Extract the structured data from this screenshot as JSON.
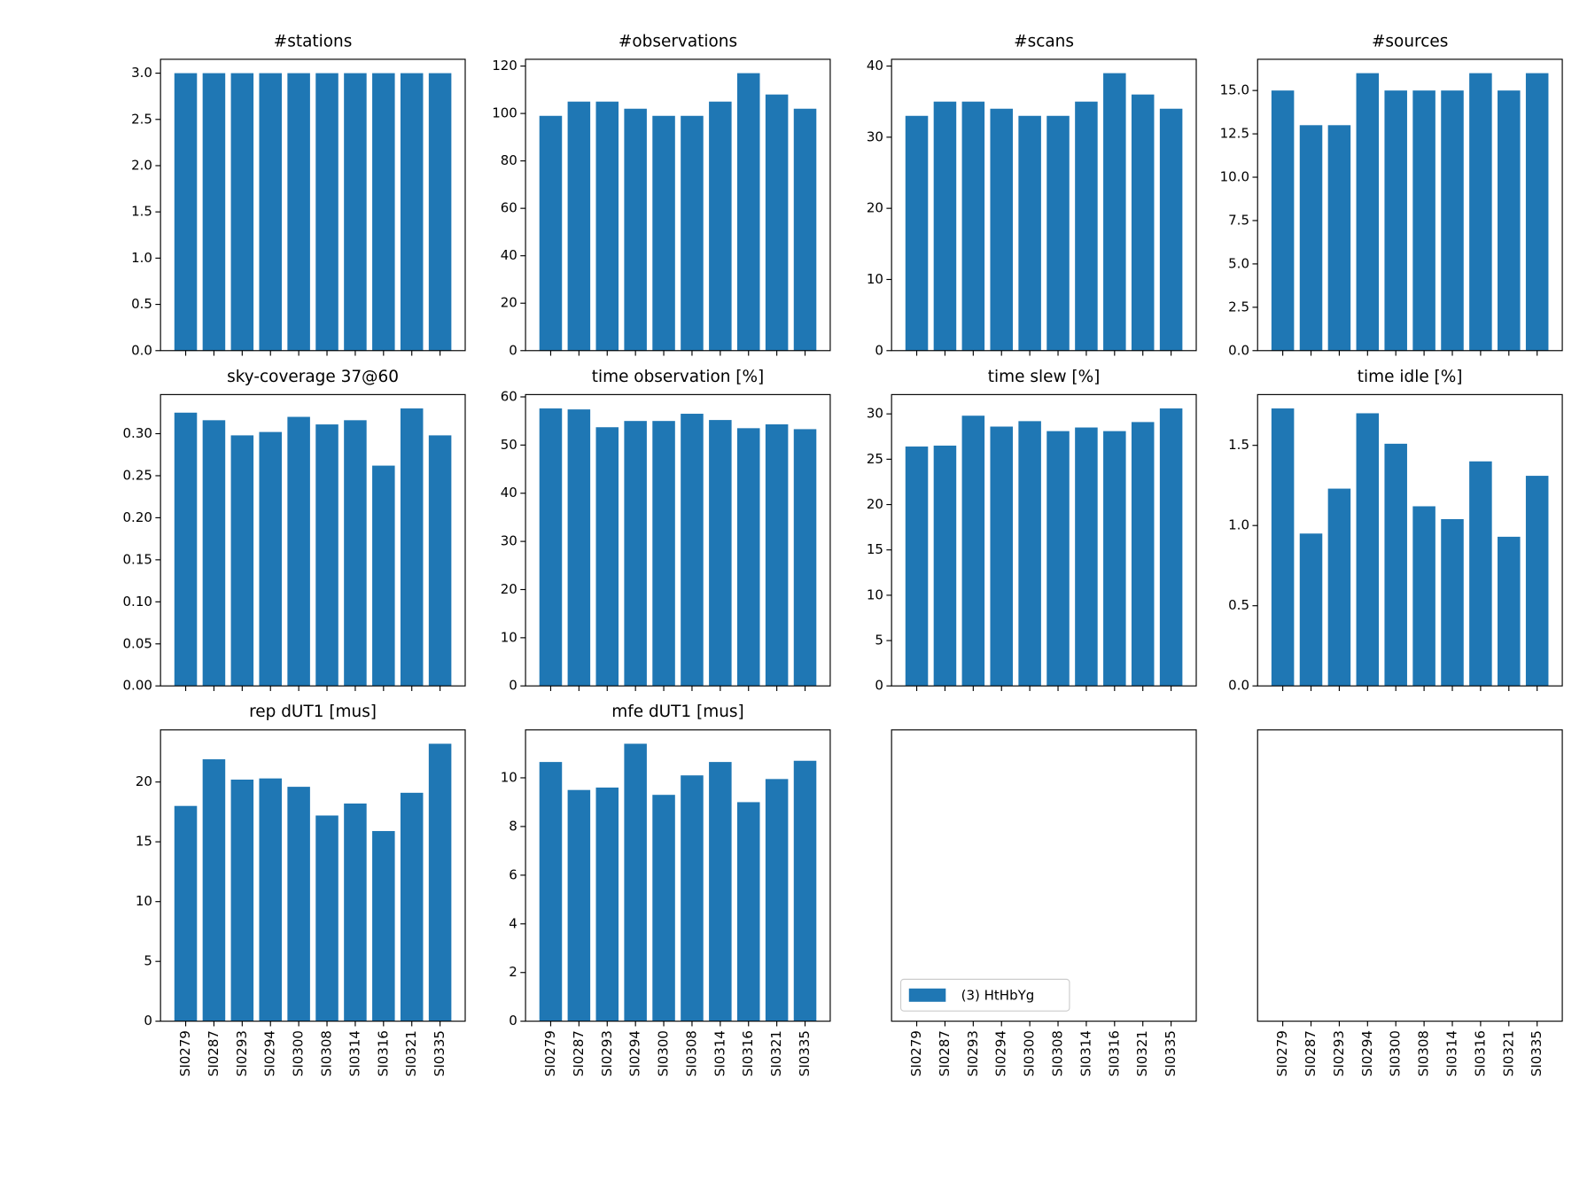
{
  "chart_data": [
    {
      "type": "bar",
      "title": "#stations",
      "values": [
        3,
        3,
        3,
        3,
        3,
        3,
        3,
        3,
        3,
        3
      ],
      "color": "#1f77b4",
      "ylim": [
        0,
        3.15
      ],
      "yticks": [
        {
          "value": 0,
          "label": "0.0"
        },
        0.5,
        {
          "value": 1,
          "label": "1.0"
        },
        1.5,
        {
          "value": 2,
          "label": "2.0"
        },
        2.5,
        {
          "value": 3,
          "label": "3.0"
        }
      ]
    },
    {
      "type": "bar",
      "title": "#observations",
      "values": [
        99,
        105,
        105,
        102,
        99,
        99,
        105,
        117,
        108,
        102
      ],
      "color": "#1f77b4",
      "ylim": [
        0,
        122.85
      ],
      "yticks": [
        0,
        20,
        40,
        60,
        80,
        100,
        120
      ]
    },
    {
      "type": "bar",
      "title": "#scans",
      "values": [
        33,
        35,
        35,
        34,
        33,
        33,
        35,
        39,
        36,
        34
      ],
      "color": "#1f77b4",
      "ylim": [
        0,
        40.95
      ],
      "yticks": [
        0,
        10,
        20,
        30,
        40
      ]
    },
    {
      "type": "bar",
      "title": "#sources",
      "values": [
        15,
        13,
        13,
        16,
        15,
        15,
        15,
        16,
        15,
        16
      ],
      "color": "#1f77b4",
      "ylim": [
        0,
        16.8
      ],
      "yticks": [
        {
          "value": 0,
          "label": "0.0"
        },
        2.5,
        {
          "value": 5,
          "label": "5.0"
        },
        7.5,
        {
          "value": 10,
          "label": "10.0"
        },
        12.5,
        {
          "value": 15,
          "label": "15.0"
        }
      ]
    },
    {
      "type": "bar",
      "title": "sky-coverage 37@60",
      "values": [
        0.325,
        0.316,
        0.298,
        0.302,
        0.32,
        0.311,
        0.316,
        0.262,
        0.33,
        0.298
      ],
      "color": "#1f77b4",
      "ylim": [
        0,
        0.3465
      ],
      "yticks": [
        {
          "value": 0,
          "label": "0.00"
        },
        0.05,
        {
          "value": 0.1,
          "label": "0.10"
        },
        0.15,
        {
          "value": 0.2,
          "label": "0.20"
        },
        0.25,
        {
          "value": 0.3,
          "label": "0.30"
        }
      ]
    },
    {
      "type": "bar",
      "title": "time observation [%]",
      "values": [
        57.6,
        57.4,
        53.7,
        55.0,
        55.0,
        56.5,
        55.2,
        53.5,
        54.3,
        53.3
      ],
      "color": "#1f77b4",
      "ylim": [
        0,
        60.48
      ],
      "yticks": [
        0,
        10,
        20,
        30,
        40,
        50,
        60
      ]
    },
    {
      "type": "bar",
      "title": "time slew [%]",
      "values": [
        26.4,
        26.5,
        29.8,
        28.6,
        29.2,
        28.1,
        28.5,
        28.1,
        29.1,
        30.6
      ],
      "color": "#1f77b4",
      "ylim": [
        0,
        32.13
      ],
      "yticks": [
        0,
        5,
        10,
        15,
        20,
        25,
        30
      ]
    },
    {
      "type": "bar",
      "title": "time idle [%]",
      "values": [
        1.73,
        0.95,
        1.23,
        1.7,
        1.51,
        1.12,
        1.04,
        1.4,
        0.93,
        1.31
      ],
      "color": "#1f77b4",
      "ylim": [
        0,
        1.8165
      ],
      "yticks": [
        {
          "value": 0,
          "label": "0.0"
        },
        0.5,
        {
          "value": 1,
          "label": "1.0"
        },
        1.5
      ]
    },
    {
      "type": "bar",
      "title": "rep dUT1 [mus]",
      "categories": [
        "SI0279",
        "SI0287",
        "SI0293",
        "SI0294",
        "SI0300",
        "SI0308",
        "SI0314",
        "SI0316",
        "SI0321",
        "SI0335"
      ],
      "values": [
        18.0,
        21.9,
        20.2,
        20.3,
        19.6,
        17.2,
        18.2,
        15.9,
        19.1,
        23.2
      ],
      "color": "#1f77b4",
      "ylim": [
        0,
        24.36
      ],
      "yticks": [
        0,
        5,
        10,
        15,
        20
      ]
    },
    {
      "type": "bar",
      "title": "mfe dUT1 [mus]",
      "categories": [
        "SI0279",
        "SI0287",
        "SI0293",
        "SI0294",
        "SI0300",
        "SI0308",
        "SI0314",
        "SI0316",
        "SI0321",
        "SI0335"
      ],
      "values": [
        10.65,
        9.5,
        9.6,
        11.4,
        9.3,
        10.1,
        10.65,
        9.0,
        9.95,
        10.7
      ],
      "color": "#1f77b4",
      "ylim": [
        0,
        11.97
      ],
      "yticks": [
        0,
        2,
        4,
        6,
        8,
        10
      ]
    },
    {
      "type": "empty",
      "categories": [
        "SI0279",
        "SI0287",
        "SI0293",
        "SI0294",
        "SI0300",
        "SI0308",
        "SI0314",
        "SI0316",
        "SI0321",
        "SI0335"
      ],
      "legend": {
        "label": "(3) HtHbYg",
        "color": "#1f77b4",
        "corner": "lower left"
      }
    },
    {
      "type": "empty",
      "categories": [
        "SI0279",
        "SI0287",
        "SI0293",
        "SI0294",
        "SI0300",
        "SI0308",
        "SI0314",
        "SI0316",
        "SI0321",
        "SI0335"
      ]
    }
  ]
}
